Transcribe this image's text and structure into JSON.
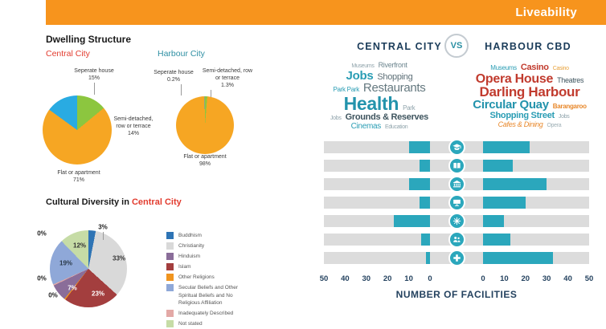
{
  "header": {
    "title": "Liveability",
    "bg_color": "#F7941D"
  },
  "dwelling": {
    "title": "Dwelling Structure",
    "central_label": "Central City",
    "harbour_label": "Harbour City"
  },
  "cultural": {
    "title_prefix": "Cultural Diversity in ",
    "title_city": "Central City",
    "legend": [
      {
        "label": "Buddhism",
        "color": "#2E74B5"
      },
      {
        "label": "Christianity",
        "color": "#D9D9D9"
      },
      {
        "label": "Hinduism",
        "color": "#8A6D99"
      },
      {
        "label": "Islam",
        "color": "#A33E3E"
      },
      {
        "label": "Other Religions",
        "color": "#F0941F"
      },
      {
        "label": "Secular Beliefs and Other\nSpiritual Beliefs and No\nReligious Affiliation",
        "color": "#8FA8D8"
      },
      {
        "label": "Inadequately Described",
        "color": "#E3A9A6"
      },
      {
        "label": "Not stated",
        "color": "#C6DCA6"
      }
    ]
  },
  "comparison": {
    "vs_label": "VS"
  },
  "wordclouds": {
    "central": {
      "lines": [
        [
          {
            "t": "Museums",
            "s": 7,
            "c": "#8FA3AB"
          },
          {
            "t": "Riverfront",
            "s": 9,
            "c": "#6E8790"
          }
        ],
        [
          {
            "t": "Jobs",
            "s": 15,
            "c": "#2A9DB4",
            "b": 1
          },
          {
            "t": "Shopping",
            "s": 11,
            "c": "#5E7078"
          }
        ],
        [
          {
            "t": "Park Park",
            "s": 8,
            "c": "#2A9DB4"
          },
          {
            "t": "Restaurants",
            "s": 15,
            "c": "#64787F"
          }
        ],
        [
          {
            "t": "Health",
            "s": 23,
            "c": "#2393AC",
            "b": 1
          },
          {
            "t": "Park",
            "s": 8,
            "c": "#8FA3AB"
          }
        ],
        [
          {
            "t": "Jobs",
            "s": 7,
            "c": "#8FA3AB"
          },
          {
            "t": "Grounds & Reserves",
            "s": 11,
            "c": "#3E545E",
            "b": 1
          }
        ],
        [
          {
            "t": "Cinemas",
            "s": 10,
            "c": "#2A9DB4"
          },
          {
            "t": "Education",
            "s": 7,
            "c": "#8FA3AB"
          }
        ]
      ]
    },
    "harbour": {
      "lines": [
        [
          {
            "t": "Museums",
            "s": 8,
            "c": "#2A9DB4"
          },
          {
            "t": "Casino",
            "s": 11,
            "c": "#C13B2E",
            "b": 1
          },
          {
            "t": "Casino",
            "s": 7,
            "c": "#E8A33D"
          }
        ],
        [
          {
            "t": "Opera House",
            "s": 16,
            "c": "#C13B2E",
            "b": 1
          },
          {
            "t": "Theatres",
            "s": 9,
            "c": "#3E545E"
          }
        ],
        [
          {
            "t": "Darling Harbour",
            "s": 17,
            "c": "#C13B2E",
            "b": 1
          }
        ],
        [
          {
            "t": "Circular Quay",
            "s": 15,
            "c": "#2393AC",
            "b": 1
          },
          {
            "t": "Barangaroo",
            "s": 8,
            "c": "#E8882B",
            "b": 1
          }
        ],
        [
          {
            "t": "Shopping Street",
            "s": 11,
            "c": "#2A9DB4",
            "b": 1
          },
          {
            "t": "Jobs",
            "s": 7,
            "c": "#8FA3AB"
          }
        ],
        [
          {
            "t": "Cafes & Dining",
            "s": 9,
            "c": "#E8882B",
            "i": 1
          },
          {
            "t": "Opera",
            "s": 7,
            "c": "#9FB0B6"
          }
        ]
      ]
    }
  },
  "chart_data": [
    {
      "id": "dwelling_central",
      "type": "pie",
      "title": "Dwelling Structure - Central City",
      "slices": [
        {
          "label": "Semi-detached, row or terrace",
          "value": 14,
          "pct": "14%",
          "color": "#8CC63F"
        },
        {
          "label": "Flat or apartment",
          "value": 71,
          "pct": "71%",
          "color": "#F6A623"
        },
        {
          "label": "Seperate house",
          "value": 15,
          "pct": "15%",
          "color": "#29ABE2"
        }
      ]
    },
    {
      "id": "dwelling_harbour",
      "type": "pie",
      "title": "Dwelling Structure - Harbour City",
      "slices": [
        {
          "label": "Semi-detached, row or terrace",
          "value": 1.3,
          "pct": "1.3%",
          "color": "#8CC63F"
        },
        {
          "label": "Flat or apartment",
          "value": 98,
          "pct": "98%",
          "color": "#F6A623"
        },
        {
          "label": "Seperate house",
          "value": 0.2,
          "pct": "0.2%",
          "color": "#29ABE2"
        }
      ]
    },
    {
      "id": "cultural_central",
      "type": "pie",
      "title": "Cultural Diversity in Central City",
      "slices": [
        {
          "label": "Buddhism",
          "value": 3,
          "pct": "3%",
          "color": "#2E74B5"
        },
        {
          "label": "Christianity",
          "value": 33,
          "pct": "33%",
          "color": "#D9D9D9"
        },
        {
          "label": "Islam",
          "value": 23,
          "pct": "23%",
          "color": "#A33E3E"
        },
        {
          "label": "Other Religions",
          "value": 0.5,
          "pct": "0%",
          "color": "#F0941F"
        },
        {
          "label": "Hinduism",
          "value": 7,
          "pct": "7%",
          "color": "#8A6D99"
        },
        {
          "label": "Inadequately Described",
          "value": 0.5,
          "pct": "0%",
          "color": "#E3A9A6"
        },
        {
          "label": "Secular Beliefs and Other Spiritual Beliefs and No Religious Affiliation",
          "value": 19,
          "pct": "19%",
          "color": "#8FA8D8"
        },
        {
          "label": "Not stated",
          "value": 12,
          "pct": "12%",
          "color": "#C6DCA6"
        }
      ]
    },
    {
      "id": "facilities",
      "type": "bar",
      "orientation": "butterfly",
      "title": "NUMBER OF FACILITIES",
      "xlim": [
        0,
        50
      ],
      "ticks_left": [
        "50",
        "40",
        "30",
        "20",
        "10",
        "0"
      ],
      "ticks_right": [
        "0",
        "10",
        "20",
        "30",
        "40",
        "50"
      ],
      "bar_color": "#2BA7BC",
      "track_color": "#DCDCDC",
      "categories": [
        "education",
        "library",
        "museum",
        "computer",
        "climate",
        "community",
        "health"
      ],
      "series": [
        {
          "name": "CENTRAL CITY",
          "values": [
            10,
            5,
            10,
            5,
            17,
            4,
            2
          ]
        },
        {
          "name": "HARBOUR CBD",
          "values": [
            22,
            14,
            30,
            20,
            10,
            13,
            33
          ]
        }
      ]
    }
  ]
}
